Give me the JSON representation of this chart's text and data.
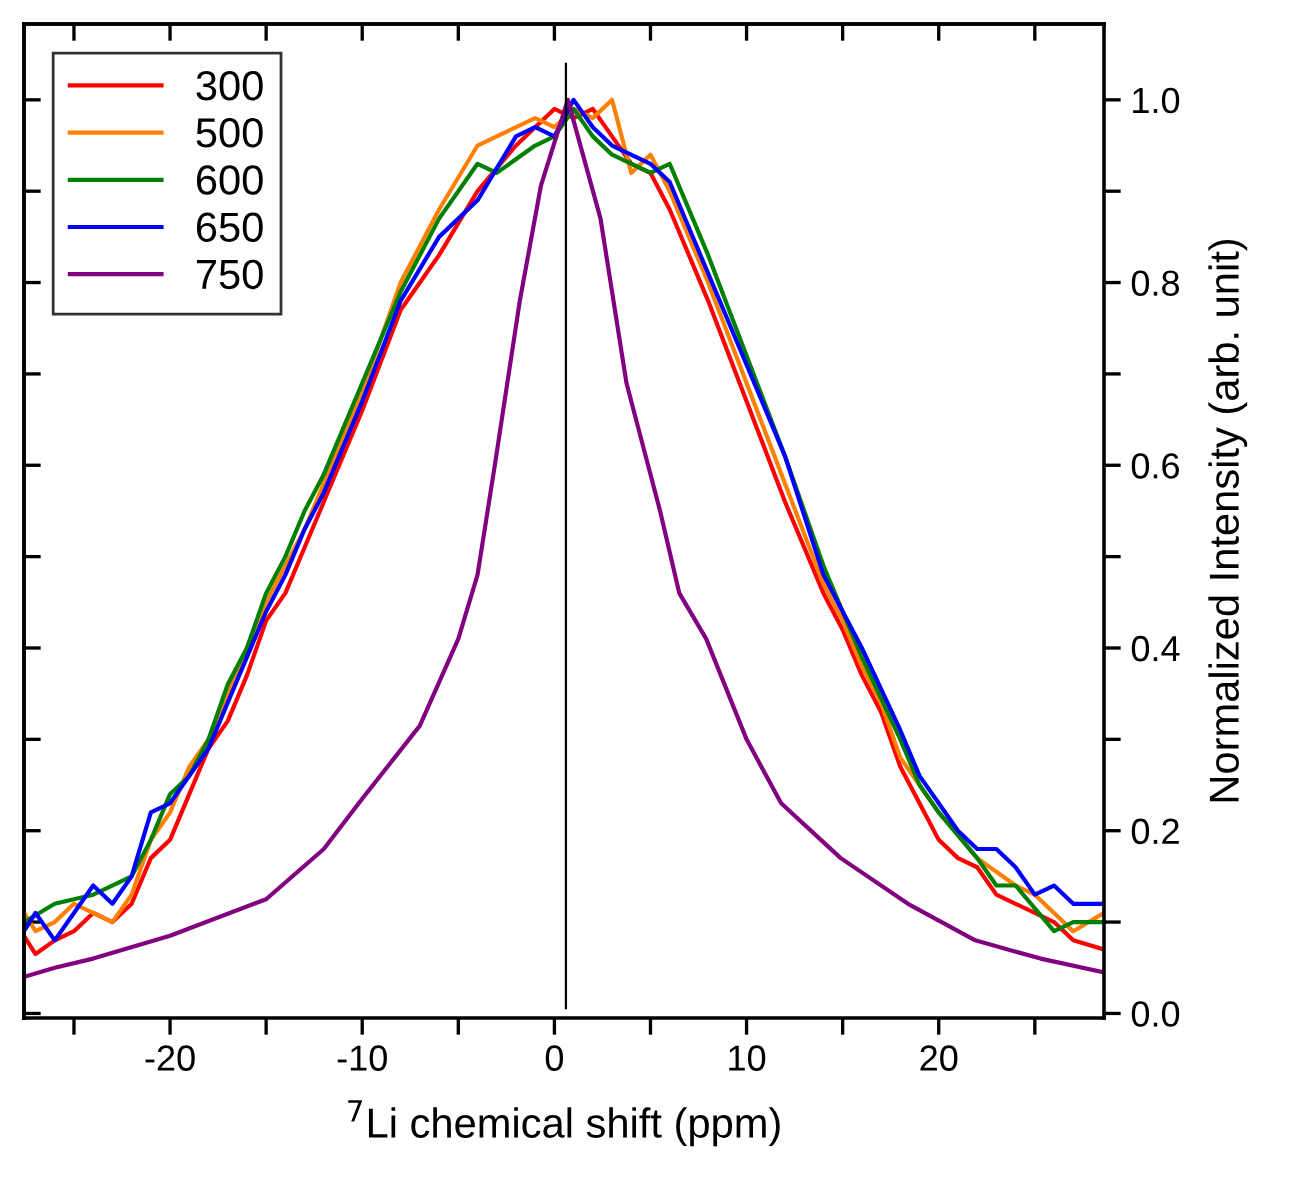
{
  "chart_data": {
    "type": "line",
    "xlabel": "$^{7}$Li chemical shift (ppm)",
    "ylabel": "Normalized Intensity (arb. unit)",
    "xlim": [
      -27.6,
      28.6
    ],
    "ylim": [
      -0.005,
      1.083
    ],
    "xticks": [
      {
        "value": -25,
        "label": null
      },
      -20,
      {
        "value": -15,
        "label": null
      },
      -10,
      {
        "value": -5,
        "label": null
      },
      0,
      {
        "value": 5,
        "label": null
      },
      10,
      {
        "value": 15,
        "label": null
      },
      20,
      {
        "value": 25,
        "label": null
      }
    ],
    "yticks": [
      "0.0",
      {
        "value": 0.1,
        "label": null
      },
      0.2,
      {
        "value": 0.3,
        "label": null
      },
      0.4,
      {
        "value": 0.5,
        "label": null
      },
      0.6,
      {
        "value": 0.7,
        "label": null
      },
      0.8,
      {
        "value": 0.9,
        "label": null
      },
      "1.0"
    ],
    "legend": "top left",
    "grid": false,
    "marker": "none",
    "line_style": "solid",
    "ref_lines": [
      {
        "axis": "x",
        "value": 0.6,
        "color": "#000000"
      }
    ],
    "series": [
      {
        "name": "300",
        "color": "#ff0000",
        "x": [
          -27.6,
          -27,
          -26,
          -25,
          -24,
          -23,
          -22,
          -21,
          -20,
          -19,
          -18,
          -17,
          -16,
          -15,
          -14,
          -13,
          -12,
          -10,
          -8,
          -6,
          -4,
          -2,
          -1,
          0,
          1,
          2,
          3,
          4,
          5,
          6,
          8,
          10,
          12,
          14,
          15,
          16,
          17,
          18,
          19,
          20,
          21,
          22,
          23,
          24,
          25,
          26,
          27,
          28.6
        ],
        "values": [
          0.085,
          0.065,
          0.08,
          0.09,
          0.11,
          0.1,
          0.12,
          0.17,
          0.19,
          0.24,
          0.29,
          0.32,
          0.37,
          0.43,
          0.46,
          0.51,
          0.56,
          0.66,
          0.77,
          0.83,
          0.9,
          0.95,
          0.97,
          0.99,
          0.98,
          0.99,
          0.96,
          0.93,
          0.92,
          0.88,
          0.78,
          0.67,
          0.56,
          0.46,
          0.42,
          0.37,
          0.33,
          0.27,
          0.23,
          0.19,
          0.17,
          0.16,
          0.13,
          0.12,
          0.11,
          0.1,
          0.08,
          0.07
        ]
      },
      {
        "name": "500",
        "color": "#ff8000",
        "x": [
          -27.6,
          -27,
          -26,
          -25,
          -24,
          -23,
          -22,
          -21,
          -20,
          -19,
          -18,
          -17,
          -16,
          -15,
          -14,
          -13,
          -12,
          -10,
          -8,
          -6,
          -4,
          -3,
          -2,
          -1,
          0,
          1,
          2,
          3,
          4,
          5,
          6,
          8,
          10,
          12,
          14,
          15,
          16,
          17,
          18,
          19,
          20,
          22,
          24,
          25,
          26,
          27,
          28.6
        ],
        "values": [
          0.11,
          0.09,
          0.1,
          0.12,
          0.11,
          0.1,
          0.13,
          0.19,
          0.22,
          0.27,
          0.3,
          0.35,
          0.4,
          0.45,
          0.49,
          0.53,
          0.58,
          0.68,
          0.8,
          0.88,
          0.95,
          0.96,
          0.97,
          0.98,
          0.97,
          0.99,
          0.98,
          1.0,
          0.92,
          0.94,
          0.9,
          0.8,
          0.69,
          0.58,
          0.47,
          0.43,
          0.38,
          0.34,
          0.28,
          0.25,
          0.22,
          0.17,
          0.14,
          0.13,
          0.11,
          0.09,
          0.11
        ]
      },
      {
        "name": "600",
        "color": "#008000",
        "x": [
          -27.6,
          -26,
          -24,
          -22,
          -21,
          -20,
          -19,
          -18,
          -17,
          -16,
          -15,
          -14,
          -13,
          -12,
          -10,
          -8,
          -6,
          -4,
          -3,
          -1,
          0,
          1,
          2,
          3,
          5,
          6,
          8,
          10,
          12,
          14,
          15,
          16,
          18,
          19,
          20,
          22,
          23,
          24,
          26,
          27,
          28.6
        ],
        "values": [
          0.1,
          0.12,
          0.13,
          0.15,
          0.19,
          0.24,
          0.26,
          0.3,
          0.36,
          0.4,
          0.46,
          0.5,
          0.55,
          0.59,
          0.69,
          0.79,
          0.87,
          0.93,
          0.92,
          0.95,
          0.96,
          0.99,
          0.96,
          0.94,
          0.92,
          0.93,
          0.83,
          0.72,
          0.61,
          0.49,
          0.44,
          0.39,
          0.3,
          0.25,
          0.22,
          0.17,
          0.14,
          0.14,
          0.09,
          0.1,
          0.1
        ]
      },
      {
        "name": "650",
        "color": "#0000ff",
        "x": [
          -27.6,
          -27,
          -26,
          -25,
          -24,
          -23,
          -22,
          -21,
          -20,
          -19,
          -18,
          -17,
          -16,
          -15,
          -14,
          -13,
          -12,
          -10,
          -8,
          -6,
          -4,
          -2,
          -1,
          0,
          1,
          2,
          3,
          5,
          6,
          8,
          10,
          12,
          14,
          15,
          16,
          18,
          19,
          20,
          21,
          22,
          23,
          24,
          25,
          26,
          27,
          28.6
        ],
        "values": [
          0.09,
          0.11,
          0.08,
          0.11,
          0.14,
          0.12,
          0.15,
          0.22,
          0.23,
          0.26,
          0.29,
          0.34,
          0.39,
          0.44,
          0.48,
          0.53,
          0.57,
          0.67,
          0.78,
          0.85,
          0.89,
          0.96,
          0.97,
          0.96,
          1.0,
          0.97,
          0.95,
          0.93,
          0.91,
          0.81,
          0.71,
          0.61,
          0.48,
          0.44,
          0.4,
          0.31,
          0.26,
          0.23,
          0.2,
          0.18,
          0.18,
          0.16,
          0.13,
          0.14,
          0.12,
          0.12
        ]
      },
      {
        "name": "750",
        "color": "#800080",
        "x": [
          -27.6,
          -26,
          -24,
          -20,
          -15,
          -12,
          -10,
          -7,
          -5,
          -4,
          -3.1,
          -1.8,
          -0.7,
          0.7,
          2.4,
          3.75,
          5.5,
          6.5,
          7.9,
          10,
          11.8,
          14.9,
          18.4,
          21.9,
          25.3,
          28.6
        ],
        "values": [
          0.04,
          0.05,
          0.06,
          0.085,
          0.125,
          0.18,
          0.235,
          0.315,
          0.41,
          0.48,
          0.6,
          0.78,
          0.906,
          1.0,
          0.87,
          0.69,
          0.55,
          0.46,
          0.41,
          0.3,
          0.23,
          0.17,
          0.12,
          0.08,
          0.06,
          0.045
        ]
      }
    ]
  }
}
